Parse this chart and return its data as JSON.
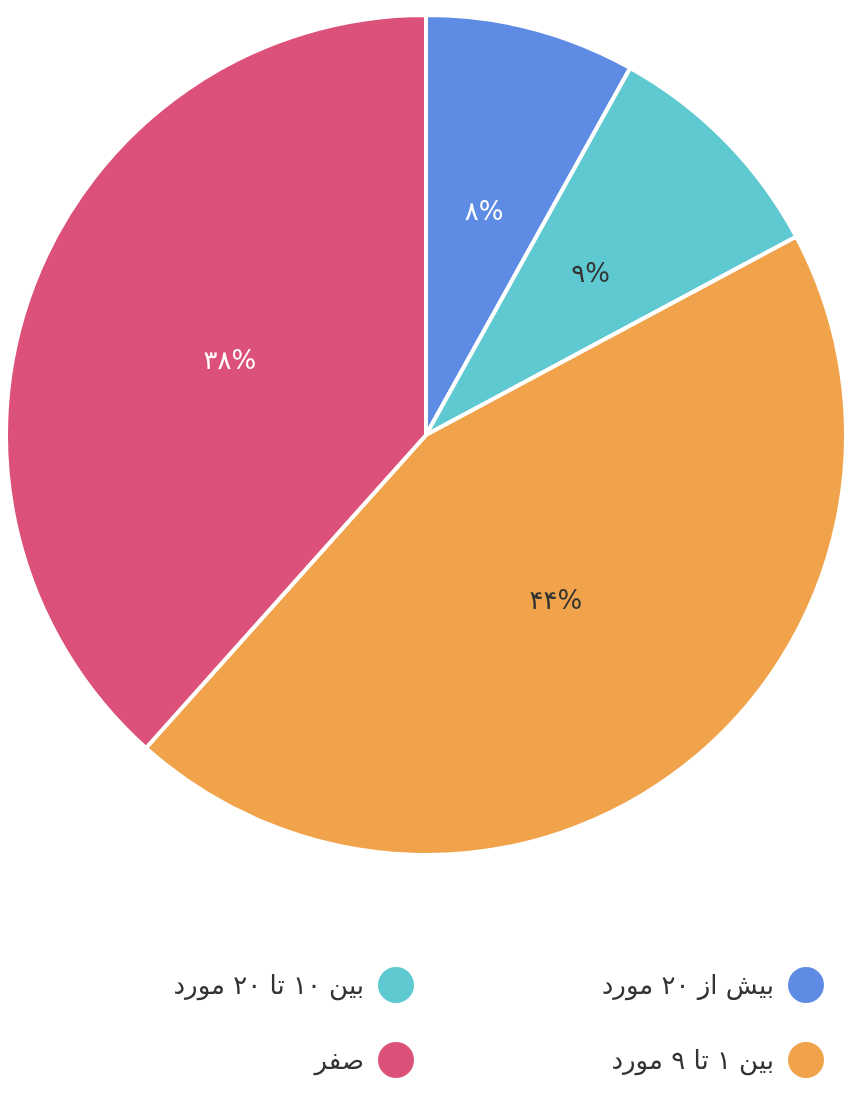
{
  "chart_data": {
    "type": "pie",
    "categories": [
      "بیش از ۲۰ مورد",
      "بین ۱۰ تا ۲۰ مورد",
      "بین ۱ تا ۹ مورد",
      "صفر"
    ],
    "values": [
      8,
      9,
      44,
      38
    ],
    "colors": [
      "#5e8ce5",
      "#5ec9d1",
      "#f0a34b",
      "#dc5179"
    ],
    "value_labels": [
      "۸%",
      "۹%",
      "۴۴%",
      "۳۸%"
    ],
    "legend": "bottom"
  }
}
